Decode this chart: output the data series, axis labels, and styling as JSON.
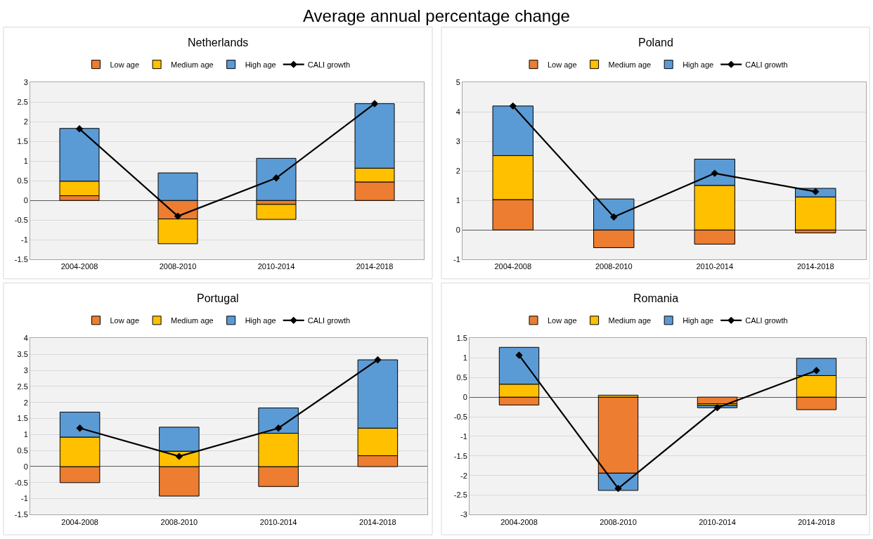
{
  "chart_data": [
    {
      "type": "bar",
      "stacked": true,
      "title": "Netherlands",
      "annotations": [
        "Average annual percentage change"
      ],
      "categories": [
        "2004-2008",
        "2008-2010",
        "2010-2014",
        "2014-2018"
      ],
      "ylim": [
        -1.5,
        3
      ],
      "yticks": [
        -1.5,
        -1,
        -0.5,
        0,
        0.5,
        1,
        1.5,
        2,
        2.5,
        3
      ],
      "grid": "y",
      "legend": "top",
      "series": [
        {
          "name": "Low age",
          "color": "#ed7d31",
          "values": [
            0.12,
            -0.47,
            -0.1,
            0.47
          ]
        },
        {
          "name": "Medium age",
          "color": "#ffc000",
          "values": [
            0.37,
            -0.63,
            -0.38,
            0.35
          ]
        },
        {
          "name": "High age",
          "color": "#5b9bd5",
          "values": [
            1.34,
            0.7,
            1.07,
            1.64
          ]
        },
        {
          "name": "CALI growth",
          "color": "#000000",
          "type": "line",
          "marker": "diamond",
          "values": [
            1.82,
            -0.4,
            0.57,
            2.46
          ]
        }
      ]
    },
    {
      "type": "bar",
      "stacked": true,
      "title": "Poland",
      "categories": [
        "2004-2008",
        "2008-2010",
        "2010-2014",
        "2014-2018"
      ],
      "ylim": [
        -1,
        5
      ],
      "yticks": [
        -1,
        0,
        1,
        2,
        3,
        4,
        5
      ],
      "grid": "y",
      "legend": "top",
      "series": [
        {
          "name": "Low age",
          "color": "#ed7d31",
          "values": [
            1.03,
            -0.6,
            -0.48,
            -0.1
          ]
        },
        {
          "name": "Medium age",
          "color": "#ffc000",
          "values": [
            1.49,
            null,
            1.51,
            1.12
          ]
        },
        {
          "name": "High age",
          "color": "#5b9bd5",
          "values": [
            1.68,
            1.05,
            0.89,
            0.29
          ]
        },
        {
          "name": "CALI growth",
          "color": "#000000",
          "type": "line",
          "marker": "diamond",
          "values": [
            4.2,
            0.44,
            1.92,
            1.3
          ]
        }
      ]
    },
    {
      "type": "bar",
      "stacked": true,
      "title": "Portugal",
      "categories": [
        "2004-2008",
        "2008-2010",
        "2010-2014",
        "2014-2018"
      ],
      "ylim": [
        -1.5,
        4
      ],
      "yticks": [
        -1.5,
        -1,
        -0.5,
        0,
        0.5,
        1,
        1.5,
        2,
        2.5,
        3,
        3.5,
        4
      ],
      "grid": "y",
      "legend": "top",
      "series": [
        {
          "name": "Low age",
          "color": "#ed7d31",
          "values": [
            -0.5,
            -0.92,
            -0.62,
            0.34
          ]
        },
        {
          "name": "Medium age",
          "color": "#ffc000",
          "values": [
            0.92,
            0.48,
            1.04,
            0.86
          ]
        },
        {
          "name": "High age",
          "color": "#5b9bd5",
          "values": [
            0.78,
            0.75,
            0.79,
            2.13
          ]
        },
        {
          "name": "CALI growth",
          "color": "#000000",
          "type": "line",
          "marker": "diamond",
          "values": [
            1.2,
            0.32,
            1.2,
            3.33
          ]
        }
      ]
    },
    {
      "type": "bar",
      "stacked": true,
      "title": "Romania",
      "categories": [
        "2004-2008",
        "2008-2010",
        "2010-2014",
        "2014-2018"
      ],
      "ylim": [
        -3,
        1.5
      ],
      "yticks": [
        -3,
        -2.5,
        -2,
        -1.5,
        -1,
        -0.5,
        0,
        0.5,
        1,
        1.5
      ],
      "grid": "y",
      "legend": "top",
      "series": [
        {
          "name": "Low age",
          "color": "#ed7d31",
          "values": [
            -0.2,
            -1.94,
            -0.17,
            -0.32
          ]
        },
        {
          "name": "Medium age",
          "color": "#ffc000",
          "values": [
            0.33,
            0.05,
            -0.04,
            0.55
          ]
        },
        {
          "name": "High age",
          "color": "#5b9bd5",
          "values": [
            0.94,
            -0.44,
            -0.06,
            0.44
          ]
        },
        {
          "name": "CALI growth",
          "color": "#000000",
          "type": "line",
          "marker": "diamond",
          "values": [
            1.07,
            -2.33,
            -0.27,
            0.68
          ]
        }
      ]
    }
  ]
}
